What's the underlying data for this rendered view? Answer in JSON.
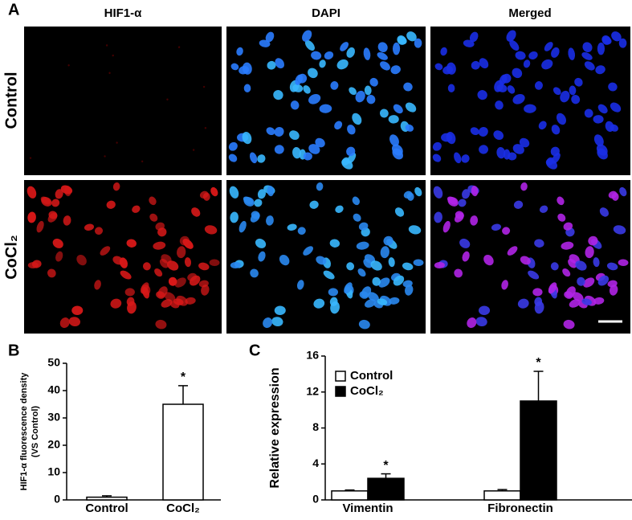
{
  "panel_a": {
    "label": "A",
    "columns": [
      "HIF1-α",
      "DAPI",
      "Merged"
    ],
    "rows": [
      "Control",
      "CoCl₂"
    ]
  },
  "chart_data": [
    {
      "type": "bar",
      "panel_label": "B",
      "y_label": [
        "HIF1-α fluorescence density",
        "(VS Control)"
      ],
      "categories": [
        "Control",
        "CoCl₂"
      ],
      "values": [
        1,
        35
      ],
      "errors": [
        0.5,
        6.8
      ],
      "significance": [
        null,
        "*"
      ],
      "color": "#ffffff",
      "ylim": [
        0,
        50
      ],
      "yticks": [
        0,
        10,
        20,
        30,
        40,
        50
      ]
    },
    {
      "type": "bar",
      "panel_label": "C",
      "y_label": "Relative expression",
      "categories": [
        "Vimentin",
        "Fibronectin"
      ],
      "series": [
        {
          "name": "Control",
          "color": "#ffffff",
          "values": [
            1,
            1
          ],
          "errors": [
            0.1,
            0.15
          ]
        },
        {
          "name": "CoCl₂",
          "color": "#000000",
          "values": [
            2.4,
            11
          ],
          "errors": [
            0.5,
            3.3
          ],
          "significance": [
            "*",
            "*"
          ]
        }
      ],
      "ylim": [
        0,
        16
      ],
      "yticks": [
        0,
        4,
        8,
        12,
        16
      ],
      "legend": "upper left"
    }
  ]
}
